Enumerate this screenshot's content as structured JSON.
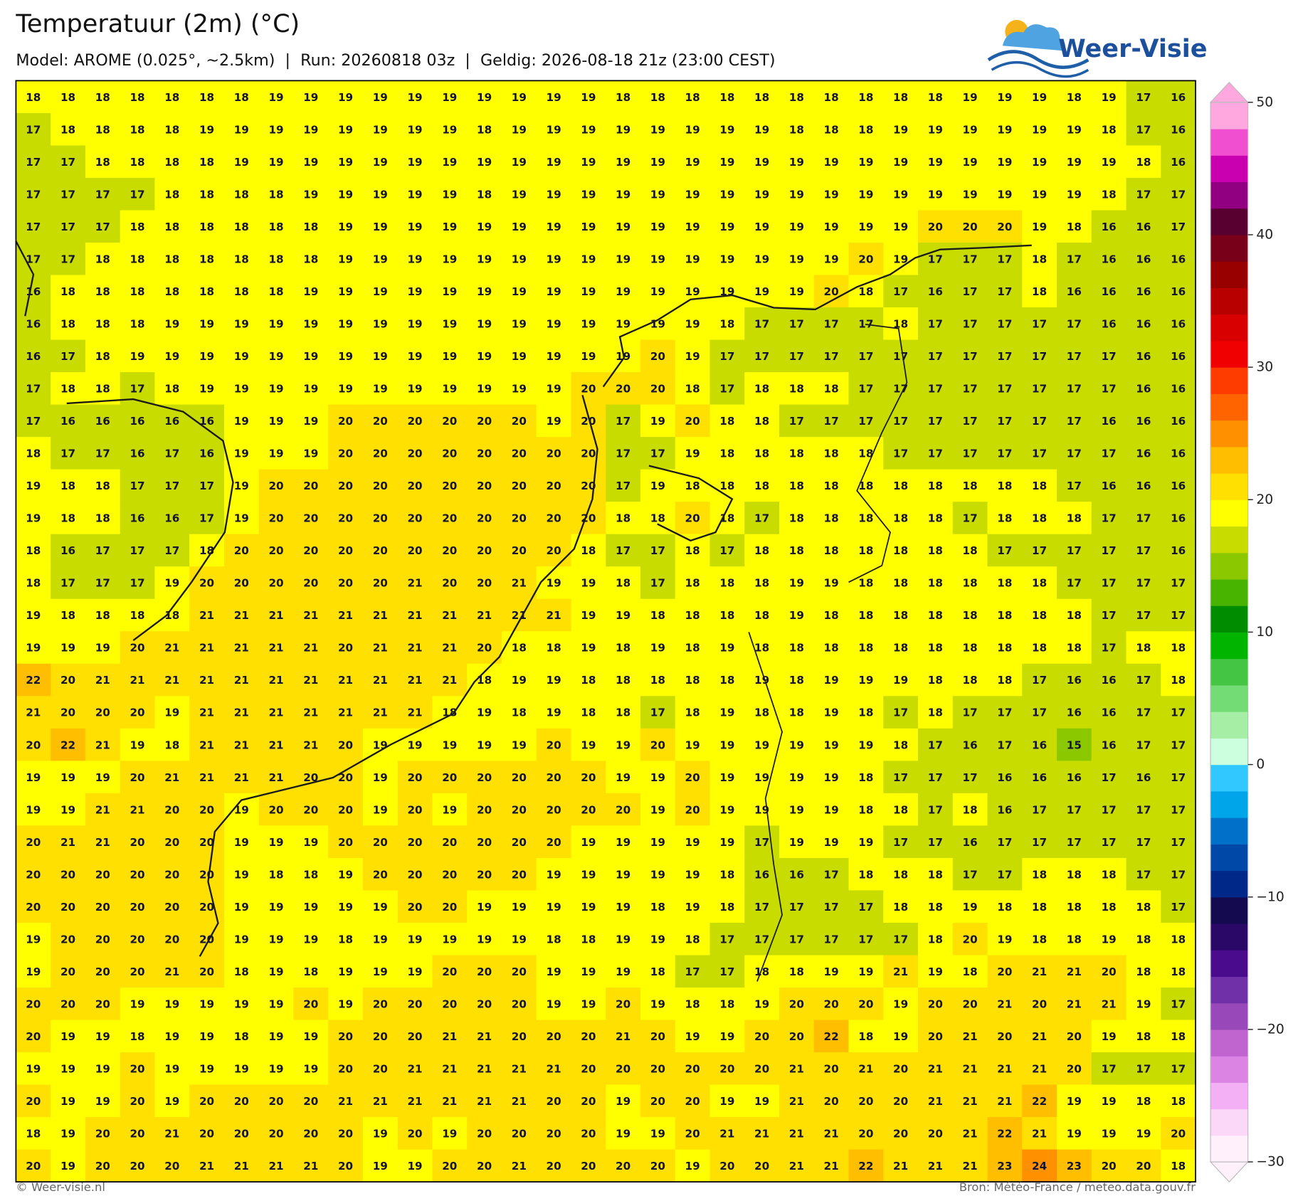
{
  "header": {
    "title": "Temperatuur (2m) (°C)",
    "subtitle": "Model: AROME (0.025°, ~2.5km)  |  Run: 20260818 03z  |  Geldig: 2026-08-18 21z (23:00 CEST)",
    "logo": "Weer-Visie"
  },
  "map": {
    "rows": [
      [
        18,
        18,
        18,
        18,
        18,
        18,
        18,
        19,
        19,
        19,
        19,
        19,
        19,
        19,
        19,
        19,
        19,
        18,
        18,
        18,
        18,
        18,
        18,
        18,
        18,
        18,
        18,
        19,
        19,
        19,
        18,
        19,
        17,
        16
      ],
      [
        17,
        18,
        18,
        18,
        18,
        19,
        19,
        19,
        19,
        19,
        19,
        19,
        19,
        18,
        19,
        19,
        19,
        19,
        19,
        19,
        19,
        19,
        18,
        18,
        18,
        19,
        19,
        19,
        19,
        19,
        19,
        18,
        17,
        16
      ],
      [
        17,
        17,
        18,
        18,
        18,
        18,
        19,
        19,
        19,
        19,
        19,
        19,
        19,
        19,
        19,
        19,
        19,
        19,
        19,
        19,
        19,
        19,
        19,
        19,
        19,
        19,
        19,
        19,
        19,
        19,
        19,
        19,
        18,
        16
      ],
      [
        17,
        17,
        17,
        17,
        18,
        18,
        18,
        18,
        19,
        19,
        19,
        19,
        19,
        18,
        19,
        19,
        19,
        19,
        19,
        19,
        19,
        19,
        19,
        19,
        19,
        19,
        19,
        19,
        19,
        19,
        19,
        18,
        17,
        17
      ],
      [
        17,
        17,
        17,
        18,
        18,
        18,
        18,
        18,
        18,
        19,
        19,
        19,
        19,
        19,
        19,
        19,
        19,
        19,
        19,
        19,
        19,
        19,
        19,
        19,
        19,
        19,
        20,
        20,
        20,
        19,
        18,
        16,
        16,
        17
      ],
      [
        17,
        17,
        18,
        18,
        18,
        18,
        18,
        18,
        18,
        19,
        19,
        19,
        19,
        19,
        19,
        19,
        19,
        19,
        19,
        19,
        19,
        19,
        19,
        19,
        20,
        19,
        17,
        17,
        17,
        18,
        17,
        16,
        16,
        16
      ],
      [
        16,
        18,
        18,
        18,
        18,
        18,
        18,
        18,
        19,
        19,
        19,
        19,
        19,
        19,
        19,
        19,
        19,
        19,
        19,
        19,
        19,
        19,
        19,
        20,
        18,
        17,
        16,
        17,
        17,
        18,
        16,
        16,
        16,
        16
      ],
      [
        16,
        18,
        18,
        18,
        19,
        19,
        19,
        19,
        19,
        19,
        19,
        19,
        19,
        19,
        19,
        19,
        19,
        19,
        19,
        19,
        18,
        17,
        17,
        17,
        17,
        18,
        17,
        17,
        17,
        17,
        17,
        16,
        16,
        16
      ],
      [
        16,
        17,
        18,
        19,
        19,
        19,
        19,
        19,
        19,
        19,
        19,
        19,
        19,
        19,
        19,
        19,
        19,
        19,
        20,
        19,
        17,
        17,
        17,
        17,
        17,
        17,
        17,
        17,
        17,
        17,
        17,
        17,
        16,
        16
      ],
      [
        17,
        18,
        18,
        17,
        18,
        19,
        19,
        19,
        19,
        19,
        19,
        19,
        19,
        19,
        19,
        19,
        20,
        20,
        20,
        18,
        17,
        18,
        18,
        18,
        17,
        17,
        17,
        17,
        17,
        17,
        17,
        17,
        16,
        16
      ],
      [
        17,
        16,
        16,
        16,
        16,
        16,
        19,
        19,
        19,
        20,
        20,
        20,
        20,
        20,
        20,
        19,
        20,
        17,
        19,
        20,
        18,
        18,
        17,
        17,
        17,
        17,
        17,
        17,
        17,
        17,
        17,
        16,
        16,
        16
      ],
      [
        18,
        17,
        17,
        16,
        17,
        16,
        19,
        19,
        19,
        20,
        20,
        20,
        20,
        20,
        20,
        20,
        20,
        17,
        17,
        19,
        18,
        18,
        18,
        18,
        18,
        17,
        17,
        17,
        17,
        17,
        17,
        17,
        16,
        16
      ],
      [
        19,
        18,
        18,
        17,
        17,
        17,
        19,
        20,
        20,
        20,
        20,
        20,
        20,
        20,
        20,
        20,
        20,
        17,
        19,
        18,
        18,
        18,
        18,
        18,
        18,
        18,
        18,
        18,
        18,
        18,
        17,
        16,
        16,
        16
      ],
      [
        19,
        18,
        18,
        16,
        16,
        17,
        19,
        20,
        20,
        20,
        20,
        20,
        20,
        20,
        20,
        20,
        20,
        18,
        18,
        20,
        18,
        17,
        18,
        18,
        18,
        18,
        18,
        17,
        18,
        18,
        18,
        17,
        17,
        16
      ],
      [
        18,
        16,
        17,
        17,
        17,
        18,
        20,
        20,
        20,
        20,
        20,
        20,
        20,
        20,
        20,
        20,
        18,
        17,
        17,
        18,
        17,
        18,
        18,
        18,
        18,
        18,
        18,
        18,
        17,
        17,
        17,
        17,
        17,
        16
      ],
      [
        18,
        17,
        17,
        17,
        19,
        20,
        20,
        20,
        20,
        20,
        20,
        21,
        20,
        20,
        21,
        19,
        19,
        18,
        17,
        18,
        18,
        18,
        19,
        19,
        18,
        18,
        18,
        18,
        18,
        18,
        17,
        17,
        17,
        17
      ],
      [
        19,
        18,
        18,
        18,
        18,
        21,
        21,
        21,
        21,
        21,
        21,
        21,
        21,
        21,
        21,
        21,
        19,
        19,
        18,
        18,
        18,
        18,
        19,
        18,
        18,
        18,
        18,
        18,
        18,
        18,
        18,
        17,
        17,
        17
      ],
      [
        19,
        19,
        19,
        20,
        21,
        21,
        21,
        21,
        21,
        20,
        21,
        21,
        21,
        20,
        18,
        18,
        19,
        18,
        19,
        18,
        19,
        18,
        18,
        18,
        18,
        18,
        18,
        18,
        18,
        18,
        18,
        17,
        18,
        18
      ],
      [
        22,
        20,
        21,
        21,
        21,
        21,
        21,
        21,
        21,
        21,
        21,
        21,
        21,
        18,
        19,
        19,
        18,
        18,
        18,
        18,
        18,
        19,
        18,
        19,
        19,
        19,
        18,
        18,
        18,
        17,
        16,
        16,
        17,
        18
      ],
      [
        21,
        20,
        20,
        20,
        19,
        21,
        21,
        21,
        21,
        21,
        21,
        21,
        18,
        19,
        18,
        19,
        18,
        18,
        17,
        18,
        19,
        18,
        18,
        19,
        18,
        17,
        18,
        17,
        17,
        17,
        16,
        16,
        17,
        17
      ],
      [
        20,
        22,
        21,
        19,
        18,
        21,
        21,
        21,
        21,
        20,
        19,
        19,
        19,
        19,
        19,
        20,
        19,
        19,
        20,
        19,
        19,
        19,
        19,
        19,
        19,
        18,
        17,
        16,
        17,
        16,
        15,
        16,
        17,
        17
      ],
      [
        19,
        19,
        19,
        20,
        21,
        21,
        21,
        21,
        20,
        20,
        19,
        20,
        20,
        20,
        20,
        20,
        20,
        19,
        19,
        20,
        19,
        19,
        19,
        19,
        18,
        17,
        17,
        17,
        16,
        16,
        16,
        17,
        16,
        17
      ],
      [
        19,
        19,
        21,
        21,
        20,
        20,
        19,
        20,
        20,
        20,
        19,
        20,
        19,
        20,
        20,
        20,
        20,
        20,
        19,
        20,
        19,
        19,
        19,
        19,
        18,
        18,
        17,
        18,
        16,
        17,
        17,
        17,
        17,
        17
      ],
      [
        20,
        21,
        21,
        20,
        20,
        20,
        19,
        19,
        19,
        20,
        20,
        20,
        20,
        20,
        20,
        20,
        19,
        19,
        19,
        19,
        19,
        17,
        19,
        19,
        19,
        17,
        17,
        16,
        17,
        17,
        17,
        17,
        17,
        17
      ],
      [
        20,
        20,
        20,
        20,
        20,
        20,
        19,
        18,
        18,
        19,
        20,
        20,
        20,
        20,
        20,
        19,
        19,
        19,
        19,
        19,
        18,
        16,
        16,
        17,
        18,
        18,
        18,
        17,
        17,
        18,
        18,
        18,
        17,
        17
      ],
      [
        20,
        20,
        20,
        20,
        20,
        20,
        19,
        19,
        19,
        19,
        19,
        20,
        20,
        19,
        19,
        19,
        19,
        19,
        18,
        19,
        18,
        17,
        17,
        17,
        17,
        18,
        18,
        19,
        18,
        18,
        18,
        18,
        18,
        17
      ],
      [
        19,
        20,
        20,
        20,
        20,
        20,
        19,
        19,
        19,
        18,
        19,
        19,
        19,
        19,
        19,
        18,
        18,
        19,
        19,
        18,
        17,
        17,
        17,
        17,
        17,
        17,
        18,
        20,
        19,
        18,
        18,
        19,
        18,
        18
      ],
      [
        19,
        20,
        20,
        20,
        21,
        20,
        18,
        19,
        18,
        19,
        19,
        19,
        20,
        20,
        20,
        19,
        19,
        19,
        18,
        17,
        17,
        18,
        18,
        19,
        19,
        21,
        19,
        18,
        20,
        21,
        21,
        20,
        18,
        18
      ],
      [
        20,
        20,
        20,
        19,
        19,
        19,
        19,
        19,
        20,
        19,
        20,
        20,
        20,
        20,
        20,
        19,
        19,
        20,
        19,
        18,
        18,
        19,
        20,
        20,
        20,
        19,
        20,
        20,
        21,
        20,
        21,
        21,
        19,
        17
      ],
      [
        20,
        19,
        19,
        18,
        19,
        19,
        18,
        19,
        19,
        20,
        20,
        20,
        21,
        21,
        20,
        20,
        20,
        21,
        20,
        19,
        19,
        20,
        20,
        22,
        18,
        19,
        20,
        21,
        20,
        21,
        20,
        19,
        18,
        18
      ],
      [
        19,
        19,
        19,
        20,
        19,
        19,
        19,
        19,
        19,
        20,
        20,
        21,
        21,
        21,
        21,
        21,
        20,
        20,
        20,
        20,
        20,
        20,
        21,
        20,
        21,
        20,
        21,
        21,
        21,
        21,
        20,
        17,
        17,
        17
      ],
      [
        20,
        19,
        19,
        20,
        19,
        20,
        20,
        20,
        20,
        21,
        21,
        21,
        21,
        21,
        21,
        20,
        20,
        19,
        20,
        20,
        19,
        19,
        21,
        20,
        20,
        20,
        21,
        21,
        21,
        22,
        19,
        19,
        18,
        18
      ],
      [
        18,
        19,
        20,
        20,
        21,
        20,
        20,
        20,
        20,
        20,
        19,
        20,
        19,
        20,
        20,
        20,
        20,
        19,
        19,
        20,
        21,
        21,
        21,
        21,
        20,
        20,
        20,
        21,
        22,
        21,
        19,
        19,
        19,
        20
      ],
      [
        20,
        19,
        20,
        20,
        20,
        21,
        21,
        21,
        21,
        20,
        19,
        19,
        20,
        20,
        21,
        20,
        20,
        20,
        20,
        19,
        20,
        20,
        21,
        21,
        22,
        21,
        21,
        21,
        23,
        24,
        23,
        20,
        20,
        18
      ]
    ]
  },
  "colorbar": {
    "lim": [
      -30,
      50
    ],
    "ticks": [
      {
        "value": -30,
        "label": "−30"
      },
      {
        "value": -20,
        "label": "−20"
      },
      {
        "value": -10,
        "label": "−10"
      },
      0,
      10,
      20,
      30,
      40,
      50
    ],
    "colors": [
      "#fff0fc",
      "#fcd8f8",
      "#f4b0f4",
      "#dc84e4",
      "#c064d0",
      "#9848b8",
      "#7030a8",
      "#4a0c8c",
      "#2a0868",
      "#140a50",
      "#002888",
      "#0048a8",
      "#0070c8",
      "#00a4e8",
      "#30c8ff",
      "#ccffdd",
      "#a6eea6",
      "#74dc74",
      "#44c644",
      "#00b400",
      "#008c00",
      "#48b400",
      "#8cc800",
      "#c8dc00",
      "#ffff00",
      "#ffe000",
      "#ffbe00",
      "#ff9000",
      "#ff6400",
      "#ff3c00",
      "#f00000",
      "#d80000",
      "#b80000",
      "#980000",
      "#780018",
      "#580030",
      "#900080",
      "#c800b0",
      "#f050d0",
      "#ffa8e0"
    ]
  },
  "footer": {
    "left": "© Weer-visie.nl",
    "right": "Bron: Météo-France / meteo.data.gouv.fr"
  }
}
